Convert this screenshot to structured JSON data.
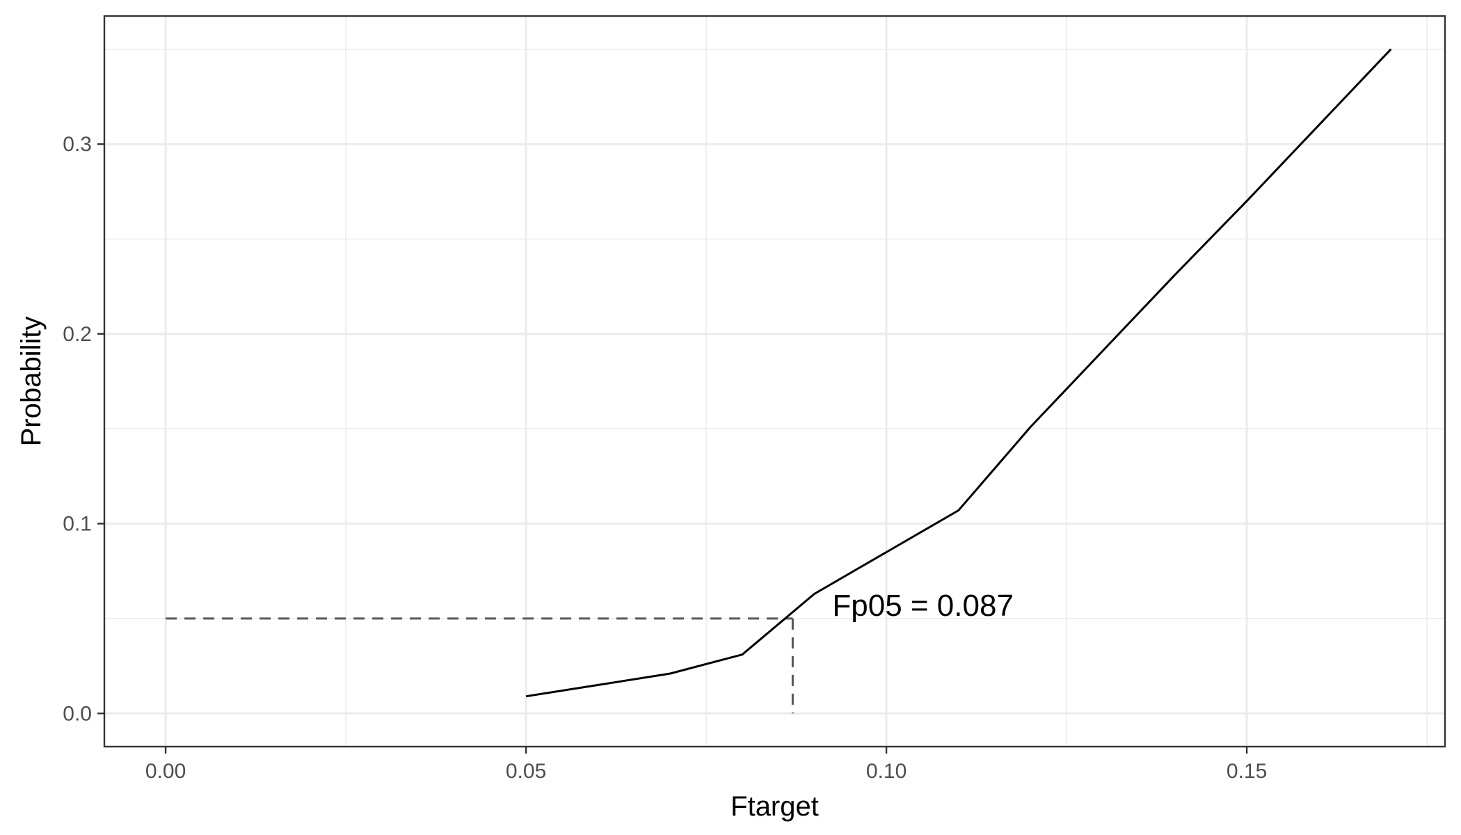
{
  "chart_data": {
    "type": "line",
    "title": "",
    "xlabel": "Ftarget",
    "ylabel": "Probability",
    "xlim": [
      -0.0085,
      0.1775
    ],
    "ylim": [
      -0.0175,
      0.3675
    ],
    "x_ticks": [
      0.0,
      0.05,
      0.1,
      0.15
    ],
    "x_tick_labels": [
      "0.00",
      "0.05",
      "0.10",
      "0.15"
    ],
    "y_ticks": [
      0.0,
      0.1,
      0.2,
      0.3
    ],
    "y_tick_labels": [
      "0.0",
      "0.1",
      "0.2",
      "0.3"
    ],
    "x_minor": [
      0.025,
      0.075,
      0.125,
      0.175
    ],
    "y_minor": [
      0.05,
      0.15,
      0.25,
      0.35
    ],
    "grid": true,
    "series": [
      {
        "x": [
          0.05,
          0.06,
          0.07,
          0.08,
          0.09,
          0.1,
          0.11,
          0.12,
          0.13,
          0.14,
          0.15,
          0.16,
          0.17
        ],
        "values": [
          0.009,
          0.015,
          0.021,
          0.031,
          0.063,
          0.085,
          0.107,
          0.151,
          0.191,
          0.231,
          0.27,
          0.31,
          0.35
        ]
      }
    ],
    "reference": {
      "x": 0.087,
      "y": 0.05
    },
    "annotation": {
      "text": "Fp05 =  0.087",
      "x": 0.0925,
      "y": 0.05
    },
    "colors": {
      "line": "#000000",
      "reference": "#595959",
      "grid": "#ebebeb",
      "panel_border": "#333333"
    }
  }
}
